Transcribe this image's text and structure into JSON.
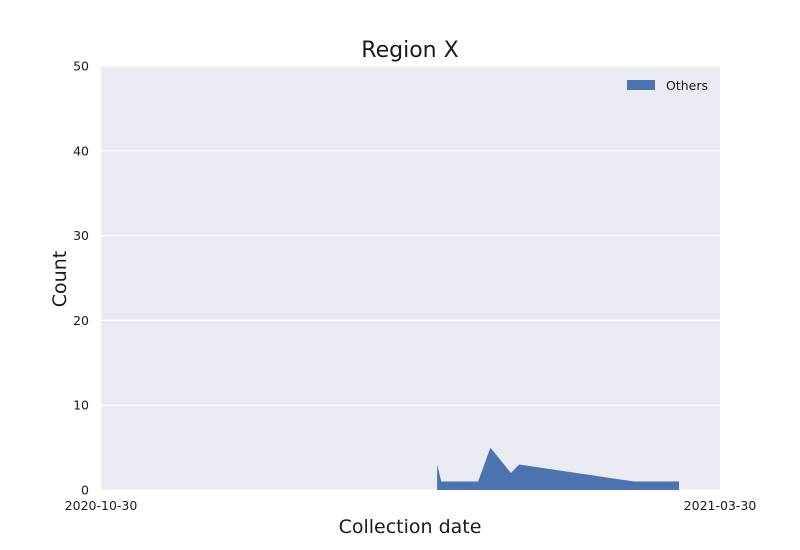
{
  "chart_data": {
    "type": "area",
    "title": "Region X",
    "xlabel": "Collection date",
    "ylabel": "Count",
    "x_type": "date",
    "xlim": [
      "2020-10-30",
      "2021-03-30"
    ],
    "ylim": [
      0,
      50
    ],
    "x_ticks": [
      "2020-10-30",
      "2021-03-30"
    ],
    "y_ticks": [
      0,
      10,
      20,
      30,
      40,
      50
    ],
    "grid": true,
    "legend_position": "top-right",
    "background_color": "#eaeaf2",
    "series": [
      {
        "name": "Others",
        "color": "#4c72b0",
        "x": [
          "2021-01-20",
          "2021-01-21",
          "2021-01-22",
          "2021-01-30",
          "2021-02-02",
          "2021-02-07",
          "2021-02-09",
          "2021-03-09",
          "2021-03-20"
        ],
        "values": [
          3,
          1,
          1,
          1,
          5,
          2,
          3,
          1,
          1
        ]
      }
    ]
  }
}
